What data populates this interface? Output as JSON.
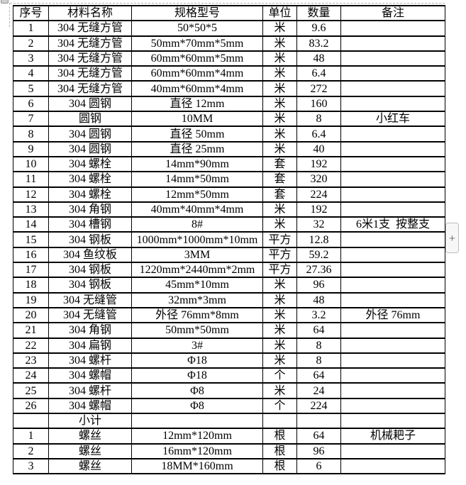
{
  "colors": {
    "table_border": "#000000",
    "boundary_dash": "#b4b4b4",
    "add_button_border": "#bdbdbd",
    "add_button_bg": "#f7f7f7"
  },
  "add_button": {
    "label": "+"
  },
  "table": {
    "headers": [
      "序号",
      "材料名称",
      "规格型号",
      "单位",
      "数量",
      "备注"
    ],
    "column_keys": [
      "no",
      "name",
      "spec",
      "unit",
      "qty",
      "note"
    ],
    "rows": [
      [
        "1",
        "304 无缝方管",
        "50*50*5",
        "米",
        "9.6",
        ""
      ],
      [
        "2",
        "304 无缝方管",
        "50mm*70mm*5mm",
        "米",
        "83.2",
        ""
      ],
      [
        "3",
        "304 无缝方管",
        "60mm*60mm*5mm",
        "米",
        "48",
        ""
      ],
      [
        "4",
        "304 无缝方管",
        "60mm*60mm*4mm",
        "米",
        "6.4",
        ""
      ],
      [
        "5",
        "304 无缝方管",
        "40mm*60mm*4mm",
        "米",
        "272",
        ""
      ],
      [
        "6",
        "304 圆钢",
        "直径 12mm",
        "米",
        "160",
        ""
      ],
      [
        "7",
        "圆钢",
        "10MM",
        "米",
        "8",
        "小红车"
      ],
      [
        "8",
        "304 圆钢",
        "直径 50mm",
        "米",
        "6.4",
        ""
      ],
      [
        "9",
        "304 圆钢",
        "直径 25mm",
        "米",
        "40",
        ""
      ],
      [
        "10",
        "304 螺栓",
        "14mm*90mm",
        "套",
        "192",
        ""
      ],
      [
        "11",
        "304 螺栓",
        "14mm*50mm",
        "套",
        "320",
        ""
      ],
      [
        "12",
        "304 螺栓",
        "12mm*50mm",
        "套",
        "224",
        ""
      ],
      [
        "13",
        "304 角钢",
        "40mm*40mm*4mm",
        "米",
        "192",
        ""
      ],
      [
        "14",
        "304 槽钢",
        "8#",
        "米",
        "32",
        "6米1支  按整支"
      ],
      [
        "15",
        "304 钢板",
        "1000mm*1000mm*10mm",
        "平方",
        "12.8",
        ""
      ],
      [
        "16",
        "304 鱼纹板",
        "3MM",
        "平方",
        "59.2",
        ""
      ],
      [
        "17",
        "304 钢板",
        "1220mm*2440mm*2mm",
        "平方",
        "27.36",
        ""
      ],
      [
        "18",
        "304 钢板",
        "45mm*10mm",
        "米",
        "96",
        ""
      ],
      [
        "19",
        "304 无缝管",
        "32mm*3mm",
        "米",
        "48",
        ""
      ],
      [
        "20",
        "304 无缝管",
        "外径 76mm*8mm",
        "米",
        "3.2",
        "外径 76mm"
      ],
      [
        "21",
        "304 角钢",
        "50mm*50mm",
        "米",
        "64",
        ""
      ],
      [
        "22",
        "304 扁钢",
        "3#",
        "米",
        "8",
        ""
      ],
      [
        "23",
        "304 螺杆",
        "Φ18",
        "米",
        "8",
        ""
      ],
      [
        "24",
        "304 螺帽",
        "Φ18",
        "个",
        "64",
        ""
      ],
      [
        "25",
        "304 螺杆",
        "Φ8",
        "米",
        "24",
        ""
      ],
      [
        "26",
        "304 螺帽",
        "Φ8",
        "个",
        "224",
        ""
      ],
      [
        "",
        "小计",
        "",
        "",
        "",
        ""
      ],
      [
        "1",
        "螺丝",
        "12mm*120mm",
        "根",
        "64",
        "机械耙子"
      ],
      [
        "2",
        "螺丝",
        "16mm*120mm",
        "根",
        "96",
        ""
      ],
      [
        "3",
        "螺丝",
        "18MM*160mm",
        "根",
        "6",
        ""
      ]
    ]
  }
}
